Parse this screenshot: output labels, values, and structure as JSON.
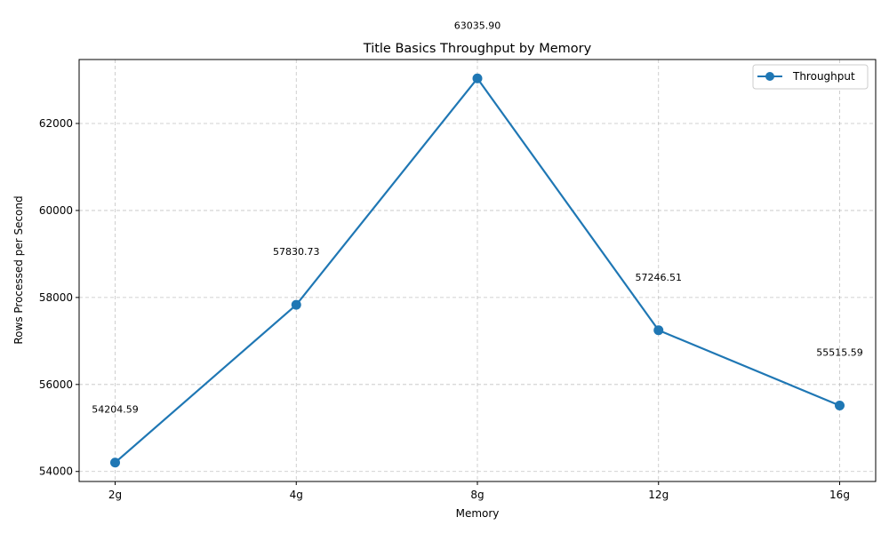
{
  "chart_data": {
    "type": "line",
    "title": "Title Basics Throughput by Memory",
    "xlabel": "Memory",
    "ylabel": "Rows Processed per Second",
    "categories": [
      "2g",
      "4g",
      "8g",
      "12g",
      "16g"
    ],
    "series": [
      {
        "name": "Throughput",
        "values": [
          54204.59,
          57830.73,
          63035.9,
          57246.51,
          55515.59
        ],
        "data_labels": [
          "54204.59",
          "57830.73",
          "63035.90",
          "57246.51",
          "55515.59"
        ],
        "color": "#1f77b4"
      }
    ],
    "ylim": [
      53770,
      63470
    ],
    "yticks": [
      54000,
      56000,
      58000,
      60000,
      62000
    ],
    "ytick_labels": [
      "54000",
      "56000",
      "58000",
      "60000",
      "62000"
    ],
    "grid": true,
    "legend_position": "top-right"
  }
}
